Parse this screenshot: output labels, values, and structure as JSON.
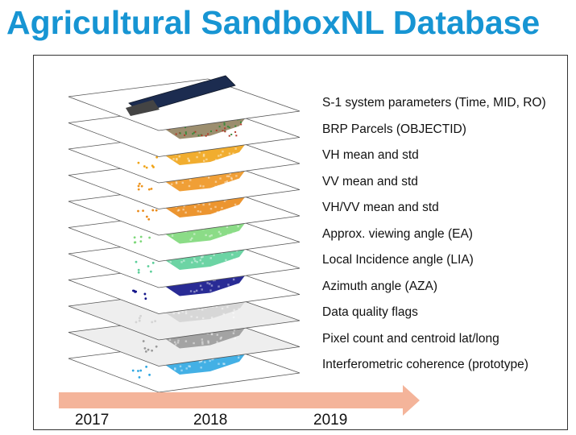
{
  "title": "Agricultural SandboxNL Database",
  "colors": {
    "title": "#1795d3",
    "arrow": "#f4b49a",
    "frame": "#333333"
  },
  "layers": [
    {
      "label": "S-1 system parameters (Time, MID, RO)",
      "fill": "satellite"
    },
    {
      "label": "BRP Parcels (OBJECTID)",
      "fill": "parcels"
    },
    {
      "label": "VH mean and std",
      "fill": "#f0a418"
    },
    {
      "label": "VV mean and std",
      "fill": "#ee9520"
    },
    {
      "label": "VH/VV mean and std",
      "fill": "#ea8a1a"
    },
    {
      "label": "Approx. viewing angle (EA)",
      "fill": "#7ed87a"
    },
    {
      "label": "Local Incidence angle (LIA)",
      "fill": "#5ccf9a"
    },
    {
      "label": "Azimuth angle (AZA)",
      "fill": "#12148a"
    },
    {
      "label": "Data quality flags",
      "fill": "#d4d4d4"
    },
    {
      "label": "Pixel count and centroid lat/long",
      "fill": "#9a9a9a"
    },
    {
      "label": "Interferometric coherence (prototype)",
      "fill": "#2fa7e2"
    }
  ],
  "timeline": {
    "years": [
      "2017",
      "2018",
      "2019"
    ]
  }
}
